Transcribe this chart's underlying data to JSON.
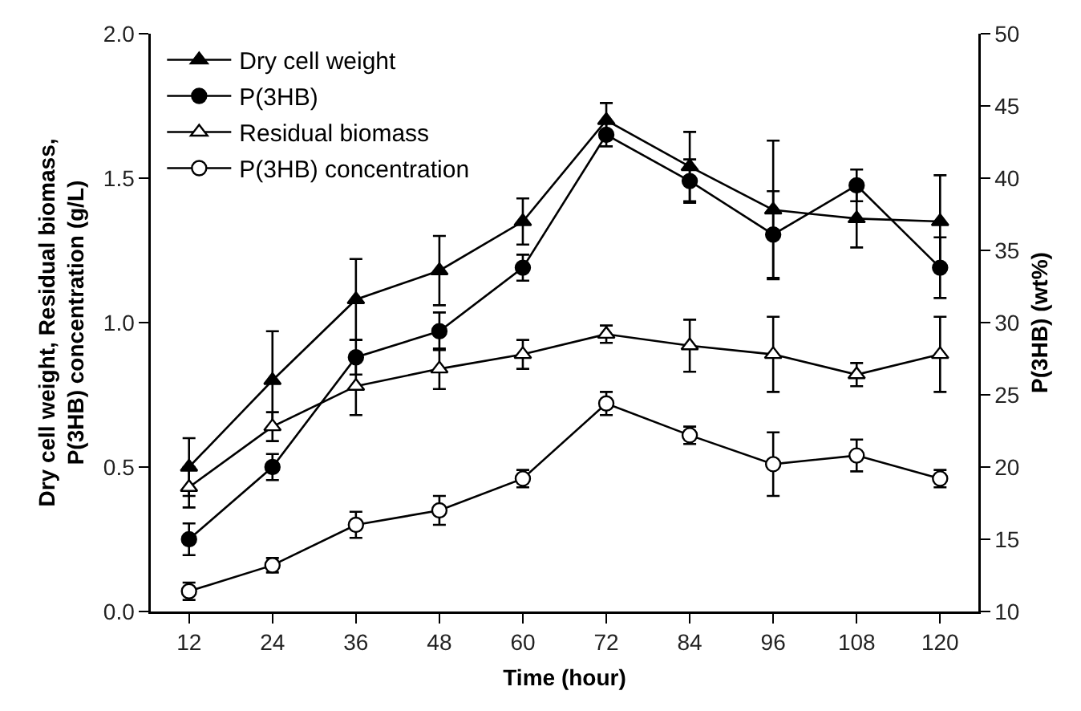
{
  "chart_data": {
    "type": "line",
    "xlabel": "Time (hour)",
    "ylabel": "Dry cell weight, Residual biomass,\nP(3HB) concentration (g/L)",
    "y2label": "P(3HB) (wt%)",
    "x": [
      12,
      24,
      36,
      48,
      60,
      72,
      84,
      96,
      108,
      120
    ],
    "xlim": [
      6.5,
      125.5
    ],
    "xticks": [
      12,
      24,
      36,
      48,
      60,
      72,
      84,
      96,
      108,
      120
    ],
    "ylim": [
      0,
      2
    ],
    "yticks": [
      {
        "value": 0,
        "label": "0.0"
      },
      {
        "value": 0.5,
        "label": "0.5"
      },
      {
        "value": 1,
        "label": "1.0"
      },
      {
        "value": 1.5,
        "label": "1.5"
      },
      {
        "value": 2,
        "label": "2.0"
      }
    ],
    "y2lim": [
      10,
      50
    ],
    "y2ticks": [
      10,
      15,
      20,
      25,
      30,
      35,
      40,
      45,
      50
    ],
    "grid": false,
    "legend": "top left",
    "series": [
      {
        "name": "Dry cell weight",
        "color": "#000000",
        "marker": "triangle",
        "values": [
          0.5,
          0.8,
          1.08,
          1.18,
          1.35,
          1.7,
          1.54,
          1.39,
          1.36,
          1.35
        ],
        "errors": [
          0.1,
          0.17,
          0.14,
          0.12,
          0.08,
          0.06,
          0.12,
          0.24,
          0.1,
          0.16
        ]
      },
      {
        "name": "P(3HB)",
        "color": "#000000",
        "marker": "circle",
        "axis": "y2",
        "values": [
          15,
          20,
          27.6,
          29.4,
          33.8,
          43,
          39.8,
          36.1,
          39.5,
          33.8
        ],
        "errors": [
          1.1,
          0.9,
          1.2,
          1.3,
          0.9,
          0.8,
          1.5,
          3,
          1.1,
          2.1
        ]
      },
      {
        "name": "Residual biomass",
        "color": "#ffffff",
        "marker": "triangle",
        "values": [
          0.43,
          0.64,
          0.78,
          0.84,
          0.89,
          0.96,
          0.92,
          0.89,
          0.82,
          0.89
        ],
        "errors": [
          0.07,
          0.05,
          0.1,
          0.07,
          0.05,
          0.03,
          0.09,
          0.13,
          0.04,
          0.13
        ]
      },
      {
        "name": "P(3HB) concentration",
        "color": "#ffffff",
        "marker": "circle",
        "values": [
          0.07,
          0.16,
          0.3,
          0.35,
          0.46,
          0.72,
          0.61,
          0.51,
          0.54,
          0.46
        ],
        "errors": [
          0.03,
          0.025,
          0.045,
          0.05,
          0.03,
          0.04,
          0.03,
          0.11,
          0.055,
          0.03
        ]
      }
    ]
  }
}
